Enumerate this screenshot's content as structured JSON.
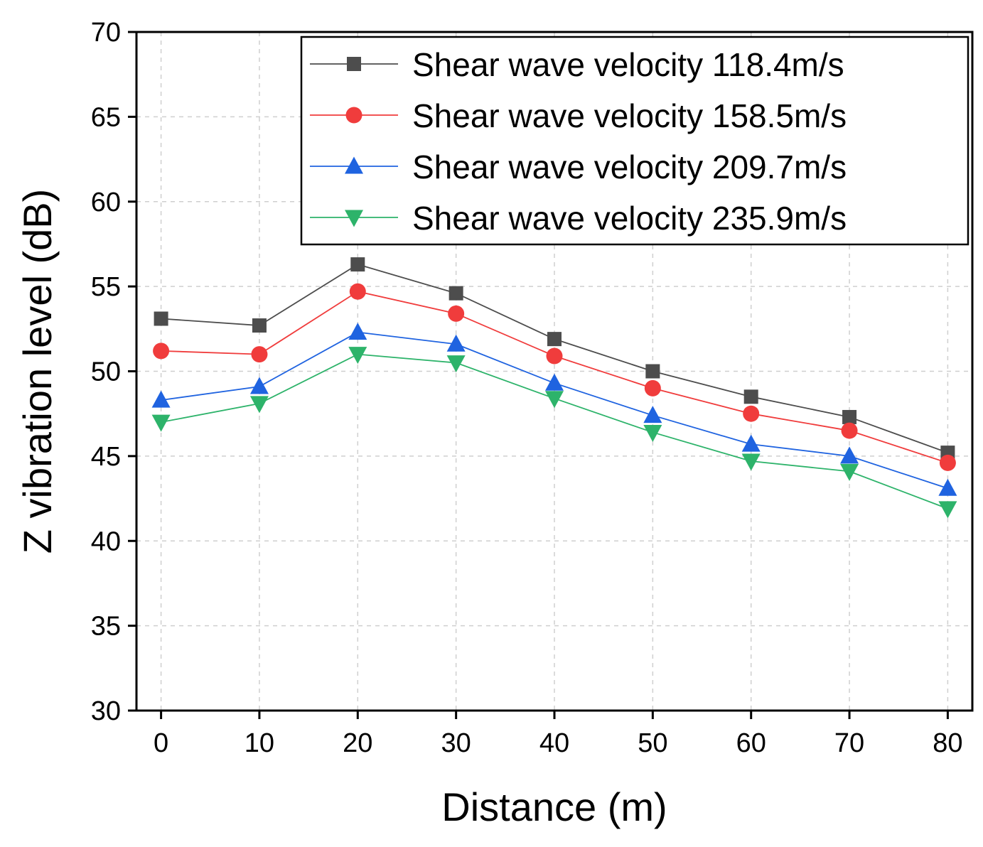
{
  "chart_data": {
    "type": "line",
    "title": "",
    "xlabel": "Distance (m)",
    "ylabel": "Z vibration level (dB)",
    "x": [
      0,
      10,
      20,
      30,
      40,
      50,
      60,
      70,
      80
    ],
    "x_ticks": [
      "0",
      "10",
      "20",
      "30",
      "40",
      "50",
      "60",
      "70",
      "80"
    ],
    "y_ticks": [
      "30",
      "35",
      "40",
      "45",
      "50",
      "55",
      "60",
      "65",
      "70"
    ],
    "xlim": [
      -2.5,
      82.5
    ],
    "ylim": [
      30,
      70
    ],
    "grid": true,
    "legend_position": "top-right",
    "series": [
      {
        "name": "Shear wave velocity 118.4m/s",
        "color": "#4d4d4d",
        "marker": "square",
        "values": [
          53.1,
          52.7,
          56.3,
          54.6,
          51.9,
          50.0,
          48.5,
          47.3,
          45.2
        ]
      },
      {
        "name": "Shear wave velocity 158.5m/s",
        "color": "#f03c3c",
        "marker": "circle",
        "values": [
          51.2,
          51.0,
          54.7,
          53.4,
          50.9,
          49.0,
          47.5,
          46.5,
          44.6
        ]
      },
      {
        "name": "Shear wave velocity 209.7m/s",
        "color": "#1f63e0",
        "marker": "triangle-up",
        "values": [
          48.3,
          49.1,
          52.3,
          51.6,
          49.3,
          47.4,
          45.7,
          45.0,
          43.1
        ]
      },
      {
        "name": "Shear wave velocity 235.9m/s",
        "color": "#2db36a",
        "marker": "triangle-down",
        "values": [
          47.0,
          48.1,
          51.0,
          50.5,
          48.4,
          46.4,
          44.7,
          44.1,
          41.9
        ]
      }
    ]
  }
}
